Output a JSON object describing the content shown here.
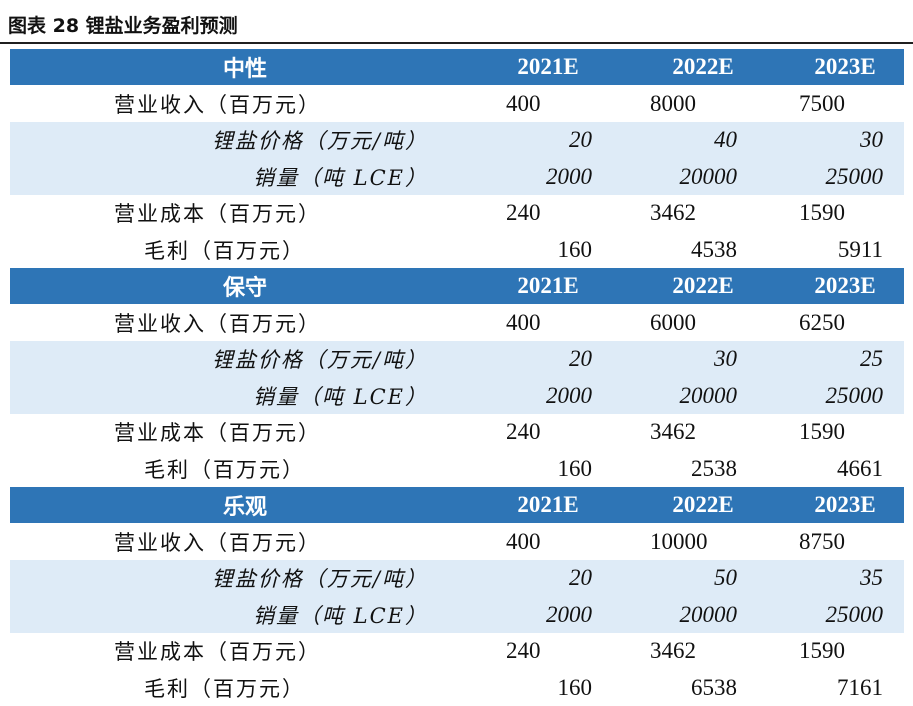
{
  "title": "图表 28  锂盐业务盈利预测",
  "columns": [
    "2021E",
    "2022E",
    "2023E"
  ],
  "scenarios": [
    {
      "name": "中性",
      "revenue": {
        "label": "营业收入（百万元）",
        "values": [
          "400",
          "8000",
          "7500"
        ]
      },
      "price": {
        "label": "锂盐价格（万元/吨）",
        "values": [
          "20",
          "40",
          "30"
        ]
      },
      "volume": {
        "label": "销量（吨 LCE）",
        "values": [
          "2000",
          "20000",
          "25000"
        ]
      },
      "cost": {
        "label": "营业成本（百万元）",
        "values": [
          "240",
          "3462",
          "1590"
        ]
      },
      "profit": {
        "label": "毛利（百万元）",
        "values": [
          "160",
          "4538",
          "5911"
        ]
      }
    },
    {
      "name": "保守",
      "revenue": {
        "label": "营业收入（百万元）",
        "values": [
          "400",
          "6000",
          "6250"
        ]
      },
      "price": {
        "label": "锂盐价格（万元/吨）",
        "values": [
          "20",
          "30",
          "25"
        ]
      },
      "volume": {
        "label": "销量（吨 LCE）",
        "values": [
          "2000",
          "20000",
          "25000"
        ]
      },
      "cost": {
        "label": "营业成本（百万元）",
        "values": [
          "240",
          "3462",
          "1590"
        ]
      },
      "profit": {
        "label": "毛利（百万元）",
        "values": [
          "160",
          "2538",
          "4661"
        ]
      }
    },
    {
      "name": "乐观",
      "revenue": {
        "label": "营业收入（百万元）",
        "values": [
          "400",
          "10000",
          "8750"
        ]
      },
      "price": {
        "label": "锂盐价格（万元/吨）",
        "values": [
          "20",
          "50",
          "35"
        ]
      },
      "volume": {
        "label": "销量（吨 LCE）",
        "values": [
          "2000",
          "20000",
          "25000"
        ]
      },
      "cost": {
        "label": "营业成本（百万元）",
        "values": [
          "240",
          "3462",
          "1590"
        ]
      },
      "profit": {
        "label": "毛利（百万元）",
        "values": [
          "160",
          "6538",
          "7161"
        ]
      }
    }
  ]
}
